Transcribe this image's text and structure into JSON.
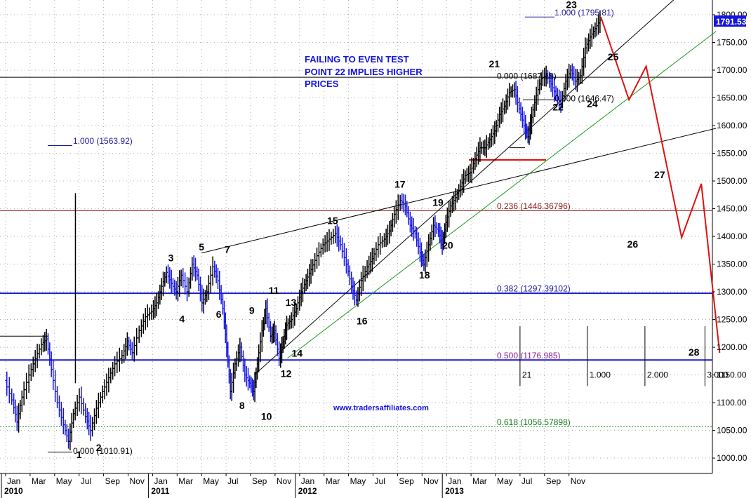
{
  "chart_data": {
    "type": "line",
    "y_axis": {
      "min": 975,
      "max": 1810,
      "ticks": [
        "1000.00",
        "1050.00",
        "1100.00",
        "1150.00",
        "1200.00",
        "1250.00",
        "1300.00",
        "1350.00",
        "1400.00",
        "1450.00",
        "1500.00",
        "1550.00",
        "1600.00",
        "1650.00",
        "1700.00",
        "1750.00",
        "1800.00"
      ],
      "current_price_label": "1791.53"
    },
    "x_axis": {
      "month_labels": [
        "Jan",
        "Mar",
        "May",
        "Jul",
        "Sep",
        "Nov",
        "Jan",
        "Mar",
        "May",
        "Jul",
        "Sep",
        "Nov",
        "Jan",
        "Mar",
        "May",
        "Jul",
        "Sep",
        "Nov",
        "Jan",
        "Mar",
        "May",
        "Jul",
        "Sep",
        "Nov"
      ],
      "year_labels": [
        {
          "label": "2010",
          "month_index": 0
        },
        {
          "label": "2011",
          "month_index": 12
        },
        {
          "label": "2012",
          "month_index": 24
        },
        {
          "label": "2013",
          "month_index": 36
        }
      ]
    },
    "price_series": {
      "points": [
        [
          0.0,
          1140
        ],
        [
          0.6,
          1105
        ],
        [
          1.0,
          1065
        ],
        [
          1.4,
          1110
        ],
        [
          2.0,
          1150
        ],
        [
          2.5,
          1180
        ],
        [
          3.0,
          1205
        ],
        [
          3.4,
          1215
        ],
        [
          3.8,
          1160
        ],
        [
          4.3,
          1100
        ],
        [
          4.8,
          1060
        ],
        [
          5.2,
          1030
        ],
        [
          5.6,
          1080
        ],
        [
          6.1,
          1110
        ],
        [
          6.6,
          1075
        ],
        [
          7.0,
          1050
        ],
        [
          7.5,
          1090
        ],
        [
          8.0,
          1120
        ],
        [
          8.5,
          1145
        ],
        [
          9.0,
          1170
        ],
        [
          9.6,
          1185
        ],
        [
          10.0,
          1210
        ],
        [
          10.4,
          1190
        ],
        [
          11.0,
          1230
        ],
        [
          11.5,
          1255
        ],
        [
          12.0,
          1265
        ],
        [
          12.4,
          1280
        ],
        [
          12.8,
          1310
        ],
        [
          13.2,
          1335
        ],
        [
          13.6,
          1315
        ],
        [
          14.0,
          1300
        ],
        [
          14.4,
          1330
        ],
        [
          14.9,
          1300
        ],
        [
          15.3,
          1350
        ],
        [
          15.7,
          1330
        ],
        [
          16.1,
          1280
        ],
        [
          16.5,
          1300
        ],
        [
          17.0,
          1345
        ],
        [
          17.4,
          1320
        ],
        [
          17.8,
          1270
        ],
        [
          18.1,
          1200
        ],
        [
          18.4,
          1120
        ],
        [
          18.8,
          1170
        ],
        [
          19.2,
          1200
        ],
        [
          19.6,
          1150
        ],
        [
          20.0,
          1135
        ],
        [
          20.3,
          1120
        ],
        [
          20.6,
          1170
        ],
        [
          21.0,
          1230
        ],
        [
          21.3,
          1270
        ],
        [
          21.7,
          1220
        ],
        [
          22.0,
          1230
        ],
        [
          22.4,
          1180
        ],
        [
          22.7,
          1210
        ],
        [
          23.0,
          1240
        ],
        [
          23.4,
          1250
        ],
        [
          23.8,
          1270
        ],
        [
          24.2,
          1300
        ],
        [
          24.6,
          1320
        ],
        [
          25.0,
          1340
        ],
        [
          25.5,
          1365
        ],
        [
          26.0,
          1385
        ],
        [
          26.5,
          1395
        ],
        [
          27.0,
          1405
        ],
        [
          27.4,
          1385
        ],
        [
          27.9,
          1350
        ],
        [
          28.3,
          1310
        ],
        [
          28.7,
          1285
        ],
        [
          29.1,
          1320
        ],
        [
          29.6,
          1345
        ],
        [
          30.0,
          1360
        ],
        [
          30.5,
          1385
        ],
        [
          31.0,
          1395
        ],
        [
          31.4,
          1410
        ],
        [
          31.8,
          1440
        ],
        [
          32.3,
          1465
        ],
        [
          32.7,
          1455
        ],
        [
          33.1,
          1420
        ],
        [
          33.5,
          1405
        ],
        [
          33.9,
          1370
        ],
        [
          34.2,
          1350
        ],
        [
          34.6,
          1385
        ],
        [
          35.0,
          1420
        ],
        [
          35.4,
          1410
        ],
        [
          35.7,
          1385
        ],
        [
          36.0,
          1425
        ],
        [
          36.4,
          1455
        ],
        [
          36.8,
          1470
        ],
        [
          37.2,
          1490
        ],
        [
          37.6,
          1510
        ],
        [
          38.0,
          1515
        ],
        [
          38.4,
          1540
        ],
        [
          38.8,
          1560
        ],
        [
          39.2,
          1560
        ],
        [
          39.6,
          1575
        ],
        [
          40.0,
          1590
        ],
        [
          40.4,
          1620
        ],
        [
          40.8,
          1635
        ],
        [
          41.2,
          1660
        ],
        [
          41.6,
          1665
        ],
        [
          42.0,
          1630
        ],
        [
          42.4,
          1600
        ],
        [
          42.7,
          1580
        ],
        [
          43.0,
          1615
        ],
        [
          43.4,
          1655
        ],
        [
          43.8,
          1685
        ],
        [
          44.2,
          1690
        ],
        [
          44.6,
          1675
        ],
        [
          45.0,
          1655
        ],
        [
          45.4,
          1640
        ],
        [
          45.8,
          1680
        ],
        [
          46.2,
          1700
        ],
        [
          46.6,
          1680
        ],
        [
          47.0,
          1690
        ],
        [
          47.4,
          1740
        ],
        [
          47.8,
          1760
        ],
        [
          48.2,
          1775
        ],
        [
          48.6,
          1790
        ]
      ]
    },
    "projection_series": {
      "points": [
        [
          48.6,
          1795.81
        ],
        [
          50.9,
          1646.47
        ],
        [
          52.3,
          1707
        ],
        [
          55.2,
          1398
        ],
        [
          56.8,
          1495
        ],
        [
          58.3,
          1190
        ]
      ]
    },
    "fibonacci_levels": [
      {
        "value": 1563.92,
        "text": "1.000 (1563.92)",
        "color": "#1a1a9a"
      },
      {
        "value": 1795.81,
        "text": "1.000 (1795.81)",
        "color": "#1a1a9a"
      },
      {
        "value": 1687.18,
        "text": "0.000 (1687.18)",
        "color": "#000000"
      },
      {
        "value": 1646.47,
        "text": "0.000 (1646.47)",
        "color": "#000000"
      },
      {
        "value": 1010.91,
        "text": "0.000 (1010.91)",
        "color": "#000000"
      },
      {
        "value": 1446.36796,
        "text": "0.236 (1446.36796)",
        "color": "#8b1a1a"
      },
      {
        "value": 1297.39102,
        "text": "0.382 (1297.39102)",
        "color": "#1a1a9a"
      },
      {
        "value": 1176.985,
        "text": "0.500 (1176.985)",
        "color": "#8b1a8b"
      },
      {
        "value": 1056.57898,
        "text": "0.618 (1056.57898)",
        "color": "#1a7a1a"
      }
    ],
    "wave_labels": [
      {
        "text": "1",
        "x": 6.0,
        "y": 1000
      },
      {
        "text": "2",
        "x": 7.6,
        "y": 1013
      },
      {
        "text": "3",
        "x": 13.5,
        "y": 1355
      },
      {
        "text": "4",
        "x": 14.4,
        "y": 1245
      },
      {
        "text": "5",
        "x": 16.0,
        "y": 1375
      },
      {
        "text": "6",
        "x": 17.4,
        "y": 1253
      },
      {
        "text": "7",
        "x": 18.1,
        "y": 1370
      },
      {
        "text": "8",
        "x": 19.3,
        "y": 1089
      },
      {
        "text": "9",
        "x": 20.1,
        "y": 1260
      },
      {
        "text": "10",
        "x": 21.3,
        "y": 1069
      },
      {
        "text": "11",
        "x": 21.9,
        "y": 1296
      },
      {
        "text": "12",
        "x": 22.9,
        "y": 1146
      },
      {
        "text": "13",
        "x": 23.3,
        "y": 1275
      },
      {
        "text": "14",
        "x": 23.8,
        "y": 1183
      },
      {
        "text": "15",
        "x": 26.7,
        "y": 1422
      },
      {
        "text": "16",
        "x": 29.1,
        "y": 1241
      },
      {
        "text": "17",
        "x": 32.2,
        "y": 1488
      },
      {
        "text": "18",
        "x": 34.2,
        "y": 1324
      },
      {
        "text": "19",
        "x": 35.3,
        "y": 1455
      },
      {
        "text": "20",
        "x": 36.1,
        "y": 1378
      },
      {
        "text": "21",
        "x": 39.9,
        "y": 1705
      },
      {
        "text": "22",
        "x": 45.1,
        "y": 1627
      },
      {
        "text": "23",
        "x": 46.2,
        "y": 1812
      },
      {
        "text": "24",
        "x": 47.9,
        "y": 1633
      },
      {
        "text": "25",
        "x": 49.6,
        "y": 1718
      },
      {
        "text": "26",
        "x": 51.2,
        "y": 1380
      },
      {
        "text": "27",
        "x": 53.4,
        "y": 1505
      },
      {
        "text": "28",
        "x": 56.2,
        "y": 1185
      }
    ],
    "time_ratios": [
      {
        "text": "21",
        "x": 42.0
      },
      {
        "text": "1.000",
        "x": 47.5
      },
      {
        "text": "2.000",
        "x": 52.2
      },
      {
        "text": "3.000",
        "x": 57.1
      }
    ],
    "annotation_lines": [
      "FAILING TO EVEN TEST",
      "POINT 22 IMPLIES HIGHER",
      "PRICES"
    ],
    "watermark": "www.tradersaffiliates.com",
    "colors": {
      "price_up": "#000000",
      "price_down": "#1515e0",
      "projection": "#e01010",
      "horizontal_line": "#1a1acc",
      "trendline_green": "#1a9a1a",
      "badge": "#1515e0"
    }
  }
}
